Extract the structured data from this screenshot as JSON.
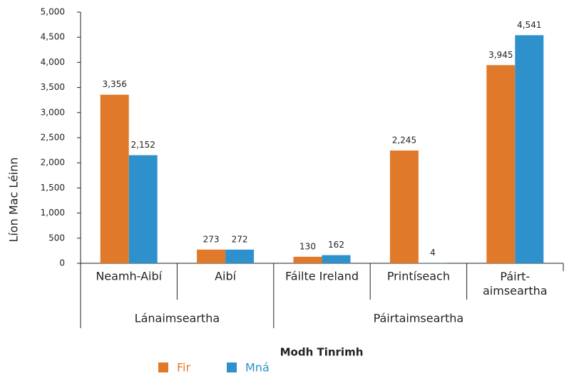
{
  "chart_data": {
    "type": "bar",
    "x_label": "Modh Tinrimh",
    "y_label": "Líon Mac Léinn",
    "categories": [
      "Neamh-Aibí",
      "Aibí",
      "Fáilte Ireland",
      "Printíseach",
      "Páirt-\naimseartha"
    ],
    "category_groups": [
      "Lánaimseartha",
      "Lánaimseartha",
      "Páirtaimseartha",
      "Páirtaimseartha",
      "Páirtaimseartha"
    ],
    "series": [
      {
        "name": "Fir",
        "color": "#e07a2a",
        "values": [
          3356,
          273,
          130,
          2245,
          3945
        ],
        "value_labels": [
          "3,356",
          "273",
          "130",
          "2,245",
          "3,945"
        ]
      },
      {
        "name": "Mná",
        "color": "#2f91cc",
        "values": [
          2152,
          272,
          162,
          4,
          4541
        ],
        "value_labels": [
          "2,152",
          "272",
          "162",
          "4",
          "4,541"
        ]
      }
    ],
    "ylim": [
      0,
      5000
    ],
    "yticks": [
      0,
      500,
      {
        "value": 1000,
        "label": "1,000"
      },
      {
        "value": 1500,
        "label": "1,500"
      },
      {
        "value": 2000,
        "label": "2,000"
      },
      {
        "value": 2500,
        "label": "2,500"
      },
      {
        "value": 3000,
        "label": "3,000"
      },
      {
        "value": 3500,
        "label": "3,500"
      },
      {
        "value": 4000,
        "label": "4,000"
      },
      {
        "value": 4500,
        "label": "4,500"
      },
      {
        "value": 5000,
        "label": "5,000"
      }
    ],
    "legend": "bottom"
  }
}
